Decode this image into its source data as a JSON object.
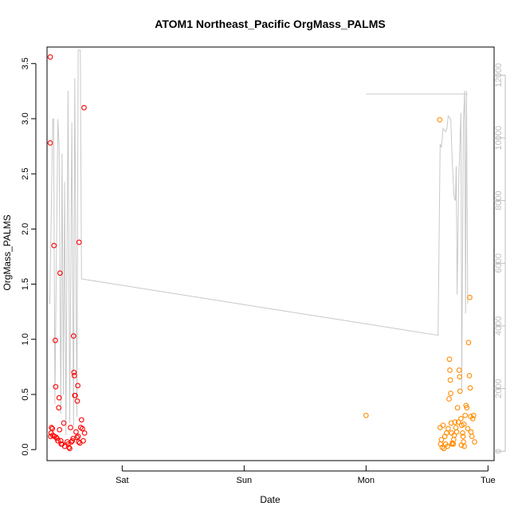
{
  "chart_data": {
    "type": "scatter",
    "title": "ATOM1 Northeast_Pacific OrgMass_PALMS",
    "xlabel": "Date",
    "ylabel": "OrgMass_PALMS",
    "x_axis": {
      "unit": "day",
      "range": [
        "Fri 09:12",
        "Tue 01:12"
      ],
      "ticks": [
        {
          "label": "Sat",
          "value": "Sat 00:00"
        },
        {
          "label": "Sun",
          "value": "Sun 00:00"
        },
        {
          "label": "Mon",
          "value": "Mon 00:00"
        },
        {
          "label": "Tue",
          "value": "Tue 00:00"
        }
      ]
    },
    "ylim": [
      -0.1,
      3.65
    ],
    "yticks": [
      "0.0",
      "0.5",
      "1.0",
      "1.5",
      "2.0",
      "2.5",
      "3.0",
      "3.5"
    ],
    "y2_axis": {
      "side": "right",
      "range": [
        -300,
        12900
      ],
      "ticks": [
        "0",
        "2000",
        "4000",
        "6000",
        "8000",
        "10000",
        "12000"
      ],
      "color": "#bdbdbd"
    },
    "grid": false,
    "series": [
      {
        "kind": "points",
        "color": "#ff0000",
        "points": [
          [
            "Fri 09:50",
            3.56
          ],
          [
            "Fri 09:50",
            2.78
          ],
          [
            "Fri 09:55",
            0.12
          ],
          [
            "Fri 10:00",
            0.15
          ],
          [
            "Fri 10:05",
            0.2
          ],
          [
            "Fri 10:15",
            0.19
          ],
          [
            "Fri 10:20",
            0.13
          ],
          [
            "Fri 10:35",
            1.85
          ],
          [
            "Fri 10:40",
            0.12
          ],
          [
            "Fri 10:50",
            0.99
          ],
          [
            "Fri 10:55",
            0.57
          ],
          [
            "Fri 11:00",
            0.11
          ],
          [
            "Fri 11:10",
            0.1
          ],
          [
            "Fri 11:20",
            0.08
          ],
          [
            "Fri 11:30",
            0.38
          ],
          [
            "Fri 11:35",
            0.47
          ],
          [
            "Fri 11:40",
            0.18
          ],
          [
            "Fri 11:45",
            1.6
          ],
          [
            "Fri 11:55",
            0.08
          ],
          [
            "Fri 12:00",
            0.05
          ],
          [
            "Fri 12:10",
            0.05
          ],
          [
            "Fri 12:30",
            0.24
          ],
          [
            "Fri 12:40",
            0.03
          ],
          [
            "Fri 13:10",
            0.07
          ],
          [
            "Fri 13:20",
            0.05
          ],
          [
            "Fri 13:30",
            0.02
          ],
          [
            "Fri 13:40",
            0.01
          ],
          [
            "Fri 13:50",
            0.2
          ],
          [
            "Fri 14:00",
            0.07
          ],
          [
            "Fri 14:10",
            0.08
          ],
          [
            "Fri 14:20",
            0.1
          ],
          [
            "Fri 14:25",
            1.03
          ],
          [
            "Fri 14:30",
            0.7
          ],
          [
            "Fri 14:35",
            0.67
          ],
          [
            "Fri 14:40",
            0.49
          ],
          [
            "Fri 14:45",
            0.49
          ],
          [
            "Fri 14:55",
            0.16
          ],
          [
            "Fri 15:05",
            0.11
          ],
          [
            "Fri 15:10",
            0.44
          ],
          [
            "Fri 15:15",
            0.58
          ],
          [
            "Fri 15:20",
            0.12
          ],
          [
            "Fri 15:25",
            0.07
          ],
          [
            "Fri 15:30",
            1.88
          ],
          [
            "Fri 15:40",
            0.06
          ],
          [
            "Fri 15:50",
            0.2
          ],
          [
            "Fri 16:00",
            0.27
          ],
          [
            "Fri 16:10",
            0.19
          ],
          [
            "Fri 16:20",
            0.08
          ],
          [
            "Fri 16:30",
            3.1
          ],
          [
            "Fri 16:35",
            0.15
          ]
        ]
      },
      {
        "kind": "points",
        "color": "#ff8c00",
        "points": [
          [
            "Mon 00:00",
            0.31
          ],
          [
            "Mon 14:30",
            2.99
          ],
          [
            "Mon 14:35",
            0.2
          ],
          [
            "Mon 14:40",
            0.05
          ],
          [
            "Mon 14:50",
            0.09
          ],
          [
            "Mon 15:00",
            0.02
          ],
          [
            "Mon 15:10",
            0.22
          ],
          [
            "Mon 15:20",
            0.01
          ],
          [
            "Mon 15:30",
            0.12
          ],
          [
            "Mon 15:40",
            0.05
          ],
          [
            "Mon 15:50",
            0.15
          ],
          [
            "Mon 16:00",
            0.03
          ],
          [
            "Mon 16:10",
            0.19
          ],
          [
            "Mon 16:20",
            0.46
          ],
          [
            "Mon 16:25",
            0.82
          ],
          [
            "Mon 16:30",
            0.72
          ],
          [
            "Mon 16:35",
            0.63
          ],
          [
            "Mon 16:40",
            0.51
          ],
          [
            "Mon 16:45",
            0.24
          ],
          [
            "Mon 16:50",
            0.15
          ],
          [
            "Mon 17:00",
            0.06
          ],
          [
            "Mon 17:10",
            0.05
          ],
          [
            "Mon 17:20",
            0.13
          ],
          [
            "Mon 17:30",
            0.25
          ],
          [
            "Mon 17:40",
            0.2
          ],
          [
            "Mon 17:50",
            0.16
          ],
          [
            "Mon 18:00",
            0.38
          ],
          [
            "Mon 18:10",
            0.25
          ],
          [
            "Mon 18:20",
            0.72
          ],
          [
            "Mon 18:25",
            0.66
          ],
          [
            "Mon 18:30",
            0.53
          ],
          [
            "Mon 18:40",
            0.28
          ],
          [
            "Mon 18:50",
            0.22
          ],
          [
            "Mon 19:00",
            0.15
          ],
          [
            "Mon 19:10",
            0.07
          ],
          [
            "Mon 19:20",
            0.03
          ],
          [
            "Mon 19:30",
            0.31
          ],
          [
            "Mon 19:40",
            0.4
          ],
          [
            "Mon 19:50",
            0.38
          ],
          [
            "Mon 20:00",
            0.19
          ],
          [
            "Mon 20:10",
            0.97
          ],
          [
            "Mon 20:20",
            0.67
          ],
          [
            "Mon 20:25",
            1.38
          ],
          [
            "Mon 20:30",
            0.56
          ],
          [
            "Mon 20:35",
            0.3
          ],
          [
            "Mon 20:40",
            0.16
          ],
          [
            "Mon 20:50",
            0.12
          ],
          [
            "Mon 21:00",
            0.28
          ],
          [
            "Mon 21:10",
            0.31
          ],
          [
            "Mon 21:20",
            0.07
          ],
          [
            "Mon 18:45",
            0.04
          ],
          [
            "Mon 19:05",
            0.12
          ],
          [
            "Mon 19:15",
            0.23
          ],
          [
            "Mon 17:15",
            0.09
          ],
          [
            "Mon 16:55",
            0.05
          ]
        ]
      },
      {
        "kind": "line",
        "axis": "right",
        "color": "#c8c8c8",
        "points": [
          [
            "Fri 09:45",
            4700
          ],
          [
            "Fri 10:20",
            10600
          ],
          [
            "Fri 10:30",
            10600
          ],
          [
            "Fri 10:45",
            1500
          ],
          [
            "Fri 11:20",
            10600
          ],
          [
            "Fri 11:35",
            9700
          ],
          [
            "Fri 11:55",
            1200
          ],
          [
            "Fri 12:10",
            9500
          ],
          [
            "Fri 12:25",
            1800
          ],
          [
            "Fri 12:40",
            8600
          ],
          [
            "Fri 12:55",
            500
          ],
          [
            "Fri 13:20",
            11500
          ],
          [
            "Fri 13:40",
            900
          ],
          [
            "Fri 14:05",
            10500
          ],
          [
            "Fri 14:25",
            800
          ],
          [
            "Fri 14:40",
            11900
          ],
          [
            "Fri 15:05",
            1100
          ],
          [
            "Fri 15:20",
            12800
          ],
          [
            "Fri 15:45",
            12800
          ],
          [
            "Fri 16:00",
            5500
          ],
          [
            "Mon 14:10",
            3700
          ],
          [
            "Mon 14:35",
            9800
          ],
          [
            "Mon 14:50",
            9700
          ],
          [
            "Mon 15:10",
            10300
          ],
          [
            "Mon 15:40",
            10200
          ],
          [
            "Mon 15:55",
            10300
          ],
          [
            "Mon 16:10",
            10700
          ],
          [
            "Mon 16:40",
            10600
          ],
          [
            "Mon 17:00",
            9100
          ],
          [
            "Mon 17:20",
            8100
          ],
          [
            "Mon 17:35",
            8000
          ],
          [
            "Mon 17:45",
            9100
          ],
          [
            "Mon 17:55",
            5000
          ],
          [
            "Mon 18:15",
            8700
          ],
          [
            "Mon 18:40",
            10800
          ],
          [
            "Mon 18:50",
            2000
          ],
          [
            "Mon 19:10",
            10500
          ],
          [
            "Mon 19:25",
            11500
          ],
          [
            "Mon 19:35",
            4400
          ],
          [
            "Mon 19:45",
            11500
          ],
          [
            "Mon 20:00",
            4700
          ]
        ]
      },
      {
        "kind": "line",
        "axis": "right",
        "color": "#c8c8c8",
        "points": [
          [
            "Mon 00:00",
            11400
          ],
          [
            "Mon 20:00",
            11400
          ]
        ]
      }
    ]
  }
}
